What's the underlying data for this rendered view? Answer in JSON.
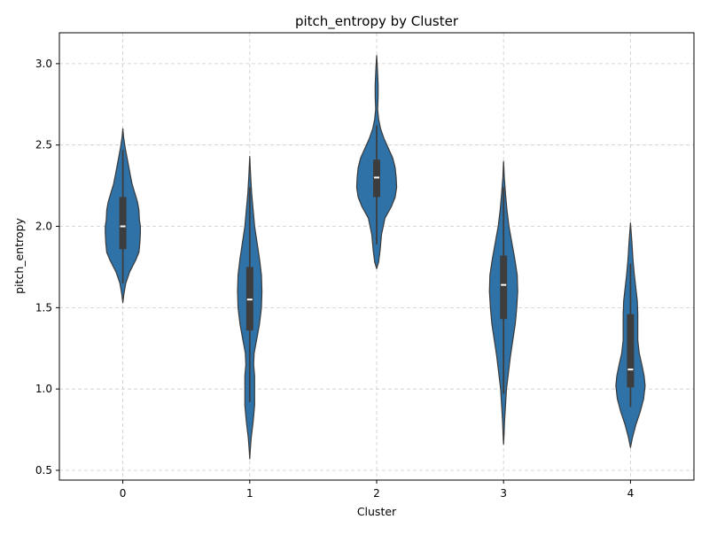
{
  "chart_data": {
    "type": "violin",
    "title": "pitch_entropy by Cluster",
    "xlabel": "Cluster",
    "ylabel": "pitch_entropy",
    "categories": [
      "0",
      "1",
      "2",
      "3",
      "4"
    ],
    "ylim": [
      0.44,
      3.19
    ],
    "yticks": [
      0.5,
      1.0,
      1.5,
      2.0,
      2.5,
      3.0
    ],
    "ytick_labels": [
      "0.5",
      "1.0",
      "1.5",
      "2.0",
      "2.5",
      "3.0"
    ],
    "grid": true,
    "colors": {
      "violin_fill": "#2f72a8",
      "violin_edge": "#3a3a3a",
      "box": "#3d3d3d",
      "median": "#ffffff",
      "grid": "#cccccc"
    },
    "violins": [
      {
        "category": "0",
        "min": 1.65,
        "q1": 1.86,
        "median": 2.0,
        "q3": 2.18,
        "max": 2.47,
        "profile": [
          [
            1.53,
            0.0
          ],
          [
            1.58,
            0.02
          ],
          [
            1.65,
            0.06
          ],
          [
            1.72,
            0.14
          ],
          [
            1.79,
            0.26
          ],
          [
            1.84,
            0.33
          ],
          [
            1.9,
            0.35
          ],
          [
            1.96,
            0.36
          ],
          [
            2.0,
            0.36
          ],
          [
            2.04,
            0.34
          ],
          [
            2.1,
            0.33
          ],
          [
            2.15,
            0.3
          ],
          [
            2.2,
            0.25
          ],
          [
            2.26,
            0.19
          ],
          [
            2.32,
            0.15
          ],
          [
            2.4,
            0.1
          ],
          [
            2.48,
            0.05
          ],
          [
            2.55,
            0.015
          ],
          [
            2.6,
            0.0
          ]
        ]
      },
      {
        "category": "1",
        "min": 0.92,
        "q1": 1.36,
        "median": 1.55,
        "q3": 1.75,
        "max": 2.24,
        "profile": [
          [
            0.57,
            0.0
          ],
          [
            0.62,
            0.01
          ],
          [
            0.7,
            0.03
          ],
          [
            0.8,
            0.07
          ],
          [
            0.9,
            0.1
          ],
          [
            1.0,
            0.1
          ],
          [
            1.08,
            0.1
          ],
          [
            1.15,
            0.08
          ],
          [
            1.22,
            0.09
          ],
          [
            1.3,
            0.14
          ],
          [
            1.4,
            0.2
          ],
          [
            1.5,
            0.24
          ],
          [
            1.6,
            0.25
          ],
          [
            1.7,
            0.24
          ],
          [
            1.8,
            0.2
          ],
          [
            1.9,
            0.15
          ],
          [
            2.0,
            0.1
          ],
          [
            2.1,
            0.07
          ],
          [
            2.2,
            0.04
          ],
          [
            2.3,
            0.02
          ],
          [
            2.43,
            0.0
          ]
        ]
      },
      {
        "category": "2",
        "min": 1.89,
        "q1": 2.18,
        "median": 2.3,
        "q3": 2.41,
        "max": 2.62,
        "profile": [
          [
            1.74,
            0.0
          ],
          [
            1.78,
            0.04
          ],
          [
            1.85,
            0.07
          ],
          [
            1.95,
            0.1
          ],
          [
            2.05,
            0.17
          ],
          [
            2.12,
            0.3
          ],
          [
            2.18,
            0.38
          ],
          [
            2.24,
            0.41
          ],
          [
            2.3,
            0.4
          ],
          [
            2.36,
            0.38
          ],
          [
            2.42,
            0.33
          ],
          [
            2.48,
            0.24
          ],
          [
            2.54,
            0.15
          ],
          [
            2.6,
            0.08
          ],
          [
            2.66,
            0.04
          ],
          [
            2.72,
            0.02
          ],
          [
            2.8,
            0.03
          ],
          [
            2.87,
            0.03
          ],
          [
            2.94,
            0.02
          ],
          [
            3.0,
            0.01
          ],
          [
            3.05,
            0.0
          ]
        ]
      },
      {
        "category": "3",
        "min": 0.97,
        "q1": 1.43,
        "median": 1.64,
        "q3": 1.82,
        "max": 2.24,
        "profile": [
          [
            0.66,
            0.0
          ],
          [
            0.72,
            0.01
          ],
          [
            0.8,
            0.02
          ],
          [
            0.9,
            0.04
          ],
          [
            1.0,
            0.06
          ],
          [
            1.1,
            0.1
          ],
          [
            1.2,
            0.14
          ],
          [
            1.3,
            0.19
          ],
          [
            1.4,
            0.24
          ],
          [
            1.5,
            0.27
          ],
          [
            1.6,
            0.29
          ],
          [
            1.7,
            0.28
          ],
          [
            1.8,
            0.23
          ],
          [
            1.9,
            0.17
          ],
          [
            2.0,
            0.11
          ],
          [
            2.1,
            0.07
          ],
          [
            2.2,
            0.04
          ],
          [
            2.3,
            0.015
          ],
          [
            2.4,
            0.0
          ]
        ]
      },
      {
        "category": "4",
        "min": 0.89,
        "q1": 1.01,
        "median": 1.12,
        "q3": 1.46,
        "max": 1.77,
        "profile": [
          [
            0.64,
            0.0
          ],
          [
            0.7,
            0.04
          ],
          [
            0.78,
            0.11
          ],
          [
            0.86,
            0.2
          ],
          [
            0.94,
            0.27
          ],
          [
            1.02,
            0.3
          ],
          [
            1.08,
            0.28
          ],
          [
            1.14,
            0.24
          ],
          [
            1.22,
            0.18
          ],
          [
            1.3,
            0.15
          ],
          [
            1.38,
            0.15
          ],
          [
            1.46,
            0.15
          ],
          [
            1.54,
            0.14
          ],
          [
            1.62,
            0.11
          ],
          [
            1.7,
            0.08
          ],
          [
            1.8,
            0.05
          ],
          [
            1.9,
            0.03
          ],
          [
            2.02,
            0.0
          ]
        ]
      }
    ]
  }
}
